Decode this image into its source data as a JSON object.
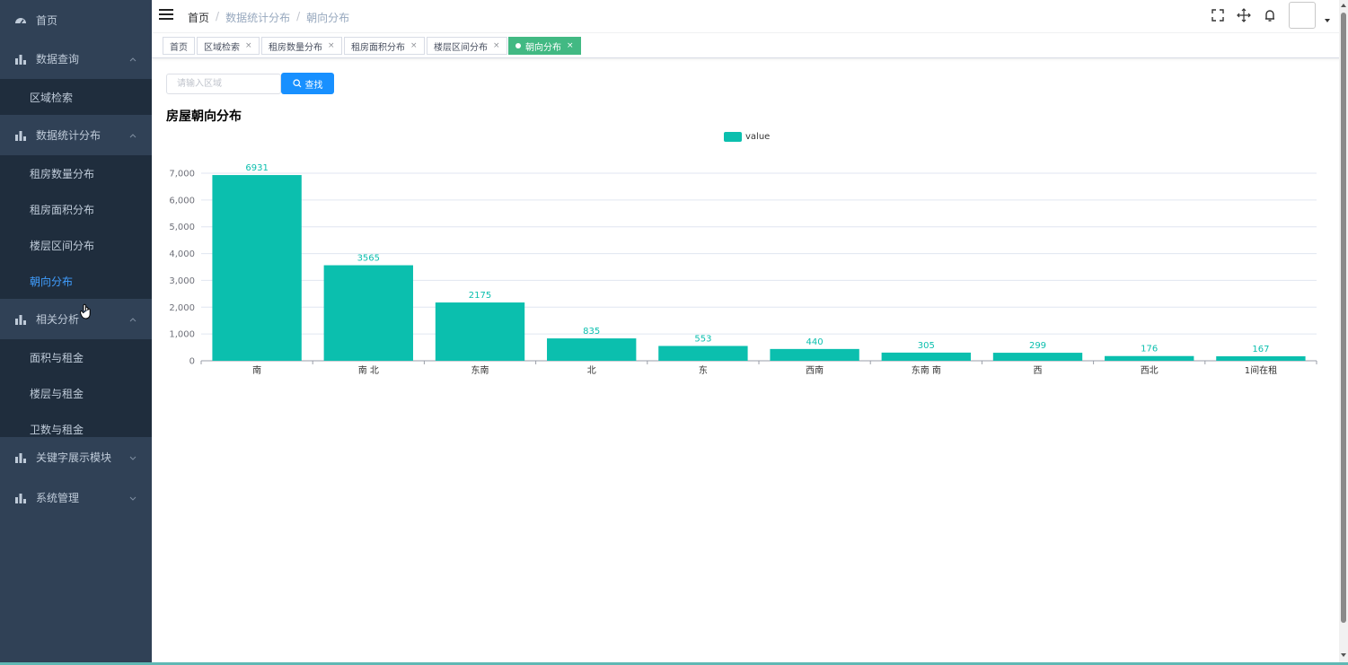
{
  "sidebar": {
    "home": "首页",
    "menus": [
      {
        "label": "数据查询",
        "sub": [
          "区域检索"
        ]
      },
      {
        "label": "数据统计分布",
        "sub": [
          "租房数量分布",
          "租房面积分布",
          "楼层区间分布",
          "朝向分布"
        ]
      },
      {
        "label": "相关分析",
        "sub": [
          "面积与租金",
          "楼层与租金",
          "卫数与租金"
        ]
      },
      {
        "label": "关键字展示模块",
        "sub": []
      },
      {
        "label": "系统管理",
        "sub": []
      }
    ],
    "active_item": "朝向分布"
  },
  "header": {
    "breadcrumb": [
      "首页",
      "数据统计分布",
      "朝向分布"
    ],
    "icons": [
      "fullscreen-icon",
      "size-icon",
      "bell-icon",
      "avatar-image"
    ]
  },
  "tags": [
    {
      "label": "首页",
      "closable": false
    },
    {
      "label": "区域检索",
      "closable": true
    },
    {
      "label": "租房数量分布",
      "closable": true
    },
    {
      "label": "租房面积分布",
      "closable": true
    },
    {
      "label": "楼层区间分布",
      "closable": true
    },
    {
      "label": "朝向分布",
      "closable": true,
      "active": true
    }
  ],
  "search": {
    "placeholder": "请输入区域",
    "value": "",
    "button_label": "查找"
  },
  "chart_title": "房屋朝向分布",
  "colors": {
    "bar": "#0bbfae",
    "active_tag": "#42b983",
    "primary_button": "#1890ff",
    "sidebar_bg": "#304156",
    "active_menu_text": "#409eff"
  },
  "chart_data": {
    "type": "bar",
    "categories": [
      "南",
      "南 北",
      "东南",
      "北",
      "东",
      "西南",
      "东南 南",
      "西",
      "西北",
      "1间在租"
    ],
    "series": [
      {
        "name": "value",
        "values": [
          6931,
          3565,
          2175,
          835,
          553,
          440,
          305,
          299,
          176,
          167
        ]
      }
    ],
    "yticks": [
      "0",
      "1,000",
      "2,000",
      "3,000",
      "4,000",
      "5,000",
      "6,000",
      "7,000"
    ],
    "ylim": [
      0,
      7000
    ],
    "grid": true,
    "legend": "top-center",
    "data_labels": true
  }
}
